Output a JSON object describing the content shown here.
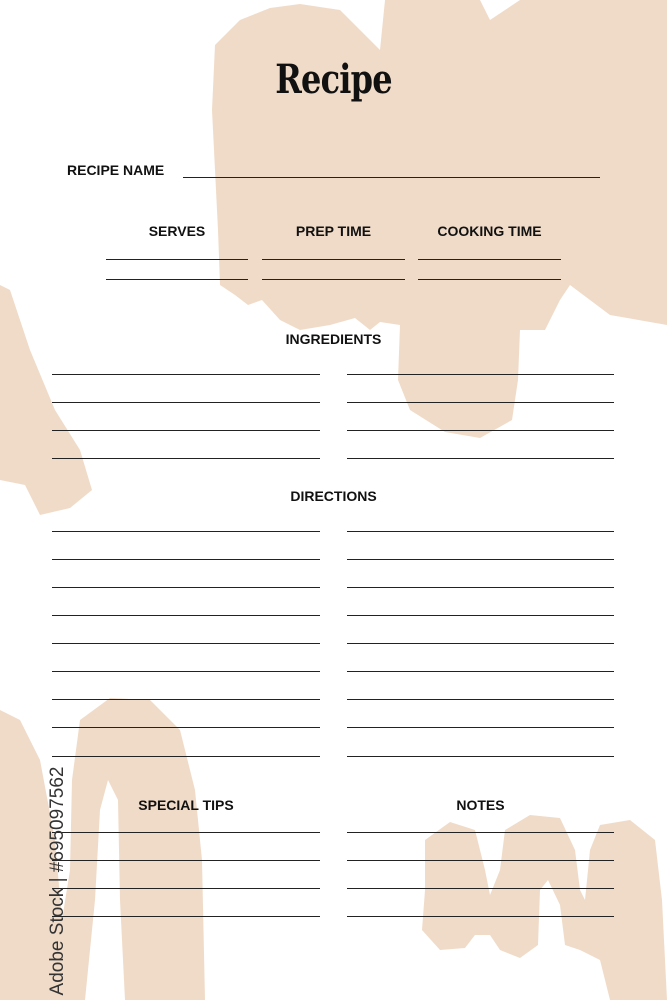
{
  "title": "Recipe",
  "recipe_name_label": "RECIPE NAME",
  "columns": {
    "serves": "SERVES",
    "prep_time": "PREP TIME",
    "cooking_time": "COOKING TIME"
  },
  "ingredients_label": "INGREDIENTS",
  "directions_label": "DIRECTIONS",
  "special_tips_label": "SPECIAL TIPS",
  "notes_label": "NOTES",
  "watermark": "Adobe Stock | #695097562",
  "colors": {
    "accent": "#f0dbc8",
    "text": "#111111"
  }
}
